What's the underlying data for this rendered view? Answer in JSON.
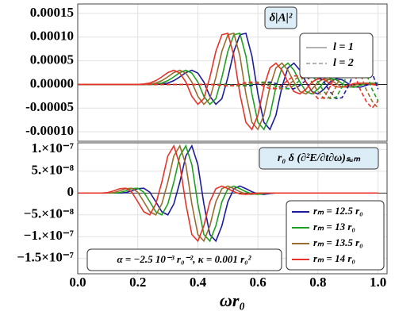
{
  "chart_data": [
    {
      "type": "line",
      "label": "δ|A|²",
      "line_styles": [
        {
          "name": "l = 1",
          "dash": "solid"
        },
        {
          "name": "l = 2",
          "dash": "dashed"
        }
      ],
      "xlim": [
        0,
        1.03
      ],
      "ylim": [
        -0.00012,
        0.00017
      ],
      "yticks": [
        0.00015,
        {
          "value": 0.0001,
          "label": "0.00010"
        },
        5e-05,
        {
          "value": 0,
          "label": "0.00000"
        },
        -5e-05,
        {
          "value": -0.0001,
          "label": "-0.00010"
        }
      ],
      "grid": true,
      "x": [
        0,
        0.02,
        0.04,
        0.06,
        0.08,
        0.1,
        0.12,
        0.14,
        0.16,
        0.18,
        0.2,
        0.22,
        0.24,
        0.26,
        0.28,
        0.3,
        0.32,
        0.34,
        0.36,
        0.38,
        0.4,
        0.42,
        0.44,
        0.46,
        0.48,
        0.5,
        0.52,
        0.54,
        0.56,
        0.58,
        0.6,
        0.62,
        0.64,
        0.66,
        0.68,
        0.7,
        0.72,
        0.74,
        0.76,
        0.78,
        0.8,
        0.82,
        0.84,
        0.86,
        0.88,
        0.9,
        0.92,
        0.94,
        0.96,
        0.98,
        1.0
      ],
      "series": [
        {
          "color": "#1c1c9c",
          "dash": "solid",
          "values": [
            0,
            0,
            0,
            0,
            0,
            0,
            0,
            0,
            0,
            0,
            0,
            0,
            0,
            0,
            1e-06,
            3e-06,
            8e-06,
            1.6e-05,
            2.5e-05,
            3e-05,
            2.4e-05,
            5e-06,
            -2.5e-05,
            -4.2e-05,
            -3e-05,
            1.5e-05,
            7e-05,
            0.000105,
            0.000108,
            6e-05,
            -2e-05,
            -8e-05,
            -9.5e-05,
            -6.5e-05,
            -5e-06,
            3.5e-05,
            4.5e-05,
            3e-05,
            5e-06,
            -1.5e-05,
            -2e-05,
            -1e-05,
            5e-06,
            1.2e-05,
            1e-05,
            2e-06,
            -5e-06,
            -6e-06,
            -2e-06,
            2e-06,
            3e-06
          ]
        },
        {
          "color": "#20a020",
          "dash": "solid",
          "values": [
            0,
            0,
            0,
            0,
            0,
            0,
            0,
            0,
            0,
            0,
            0,
            0,
            0,
            1e-06,
            3e-06,
            8e-06,
            1.6e-05,
            2.5e-05,
            3e-05,
            2.4e-05,
            5e-06,
            -2.5e-05,
            -4.2e-05,
            -3e-05,
            1.5e-05,
            7e-05,
            0.000105,
            0.000108,
            6e-05,
            -2e-05,
            -8e-05,
            -9.5e-05,
            -6.5e-05,
            -5e-06,
            3.5e-05,
            4.5e-05,
            3e-05,
            5e-06,
            -1.5e-05,
            -2e-05,
            -1e-05,
            5e-06,
            1.2e-05,
            1e-05,
            2e-06,
            -5e-06,
            -6e-06,
            -2e-06,
            2e-06,
            3e-06,
            2e-06
          ]
        },
        {
          "color": "#9c6b2e",
          "dash": "solid",
          "values": [
            0,
            0,
            0,
            0,
            0,
            0,
            0,
            0,
            0,
            0,
            0,
            0,
            1e-06,
            3e-06,
            8e-06,
            1.6e-05,
            2.5e-05,
            3e-05,
            2.4e-05,
            5e-06,
            -2.5e-05,
            -4.2e-05,
            -3e-05,
            1.5e-05,
            7e-05,
            0.000105,
            0.000108,
            6e-05,
            -2e-05,
            -8e-05,
            -9.5e-05,
            -6.5e-05,
            -5e-06,
            3.5e-05,
            4.5e-05,
            3e-05,
            5e-06,
            -1.5e-05,
            -2e-05,
            -1e-05,
            5e-06,
            1.2e-05,
            1e-05,
            2e-06,
            -5e-06,
            -6e-06,
            -2e-06,
            2e-06,
            3e-06,
            2e-06,
            0
          ]
        },
        {
          "color": "#e8322a",
          "dash": "solid",
          "values": [
            0,
            0,
            0,
            0,
            0,
            0,
            0,
            0,
            0,
            0,
            0,
            1e-06,
            3e-06,
            8e-06,
            1.6e-05,
            2.5e-05,
            3e-05,
            2.4e-05,
            5e-06,
            -2.5e-05,
            -4.2e-05,
            -3e-05,
            1.5e-05,
            7e-05,
            0.000105,
            0.000108,
            6e-05,
            -2e-05,
            -8e-05,
            -9.5e-05,
            -6.5e-05,
            -5e-06,
            3.5e-05,
            4.5e-05,
            3e-05,
            5e-06,
            -1.5e-05,
            -2e-05,
            -1e-05,
            5e-06,
            1.2e-05,
            1e-05,
            2e-06,
            -5e-06,
            -6e-06,
            -2e-06,
            2e-06,
            3e-06,
            2e-06,
            0,
            -2e-06
          ]
        },
        {
          "color": "#1c1c9c",
          "dash": "dashed",
          "values": [
            0,
            0,
            0,
            0,
            0,
            0,
            0,
            0,
            0,
            0,
            0,
            0,
            0,
            0,
            0,
            0,
            0,
            0,
            0,
            0,
            0,
            0,
            0,
            0,
            0,
            0,
            -1e-06,
            -2e-06,
            -3e-06,
            -2e-06,
            1e-06,
            4e-06,
            5e-06,
            2e-06,
            -4e-06,
            -9e-06,
            -9e-06,
            -2e-06,
            9e-06,
            1.8e-05,
            1.8e-05,
            5e-06,
            -1.5e-05,
            -3e-05,
            -2.8e-05,
            -5e-06,
            2.5e-05,
            4.5e-05,
            4.8e-05,
            2.5e-05,
            -1e-05
          ]
        },
        {
          "color": "#20a020",
          "dash": "dashed",
          "values": [
            0,
            0,
            0,
            0,
            0,
            0,
            0,
            0,
            0,
            0,
            0,
            0,
            0,
            0,
            0,
            0,
            0,
            0,
            0,
            0,
            0,
            0,
            0,
            0,
            0,
            -1e-06,
            -2e-06,
            -3e-06,
            -2e-06,
            1e-06,
            4e-06,
            5e-06,
            2e-06,
            -4e-06,
            -9e-06,
            -9e-06,
            -2e-06,
            9e-06,
            1.8e-05,
            1.8e-05,
            5e-06,
            -1.5e-05,
            -3e-05,
            -2.8e-05,
            -5e-06,
            2.5e-05,
            4.5e-05,
            4.8e-05,
            2.5e-05,
            -1e-05,
            -3.5e-05
          ]
        },
        {
          "color": "#9c6b2e",
          "dash": "dashed",
          "values": [
            0,
            0,
            0,
            0,
            0,
            0,
            0,
            0,
            0,
            0,
            0,
            0,
            0,
            0,
            0,
            0,
            0,
            0,
            0,
            0,
            0,
            0,
            0,
            0,
            -1e-06,
            -2e-06,
            -3e-06,
            -2e-06,
            1e-06,
            4e-06,
            5e-06,
            2e-06,
            -4e-06,
            -9e-06,
            -9e-06,
            -2e-06,
            9e-06,
            1.8e-05,
            1.8e-05,
            5e-06,
            -1.5e-05,
            -3e-05,
            -2.8e-05,
            -5e-06,
            2.5e-05,
            4.5e-05,
            4.8e-05,
            2.5e-05,
            -1e-05,
            -3.5e-05,
            -5e-05
          ]
        },
        {
          "color": "#e8322a",
          "dash": "dashed",
          "values": [
            0,
            0,
            0,
            0,
            0,
            0,
            0,
            0,
            0,
            0,
            0,
            0,
            0,
            0,
            0,
            0,
            0,
            0,
            0,
            0,
            0,
            0,
            0,
            -1e-06,
            -2e-06,
            -3e-06,
            -2e-06,
            1e-06,
            4e-06,
            5e-06,
            2e-06,
            -4e-06,
            -9e-06,
            -9e-06,
            -2e-06,
            9e-06,
            1.8e-05,
            1.8e-05,
            5e-06,
            -1.5e-05,
            -3e-05,
            -2.8e-05,
            -5e-06,
            2.5e-05,
            4.5e-05,
            4.8e-05,
            2.5e-05,
            -1e-05,
            -3.5e-05,
            -5e-05,
            -3.5e-05
          ]
        }
      ]
    },
    {
      "type": "line",
      "label": "r₀ δ (∂²E/∂t∂ω)ₛᵤₘ",
      "annotation": "α = −2.5 10⁻³ r₀⁻²,  κ = 0.001 r₀²",
      "xlabel": "ωr₀",
      "xlim": [
        0,
        1.03
      ],
      "xticks": [
        {
          "value": 0,
          "label": "0.0"
        },
        0.2,
        0.4,
        0.6,
        0.8,
        {
          "value": 1,
          "label": "1.0"
        }
      ],
      "ylim": [
        -1.85e-07,
        1.15e-07
      ],
      "yticks": [
        {
          "value": 1e-07,
          "label": "1.×10⁻⁷"
        },
        {
          "value": 5e-08,
          "label": "5.×10⁻⁸"
        },
        0,
        {
          "value": -5e-08,
          "label": "−5.×10⁻⁸"
        },
        {
          "value": -1e-07,
          "label": "−1.×10⁻⁷"
        },
        {
          "value": -1.5e-07,
          "label": "−1.5×10⁻⁷"
        }
      ],
      "grid": true,
      "x": [
        0,
        0.02,
        0.04,
        0.06,
        0.08,
        0.1,
        0.12,
        0.14,
        0.16,
        0.18,
        0.2,
        0.22,
        0.24,
        0.26,
        0.28,
        0.3,
        0.32,
        0.34,
        0.36,
        0.38,
        0.4,
        0.42,
        0.44,
        0.46,
        0.48,
        0.5,
        0.52,
        0.54,
        0.56,
        0.58,
        0.6,
        0.62,
        0.64,
        0.66,
        0.68,
        0.7,
        0.72,
        0.74,
        0.76,
        0.78,
        0.8,
        0.82,
        0.84,
        0.86,
        0.88,
        0.9,
        0.92,
        0.94,
        0.96,
        0.98,
        1.0
      ],
      "series": [
        {
          "name": "rₘ = 12.5 r₀",
          "color": "#1c1c9c",
          "values": [
            0,
            0,
            0,
            0,
            0,
            0,
            0,
            0,
            1e-09,
            5e-09,
            1e-08,
            1.1e-08,
            2e-09,
            -2e-08,
            -4.3e-08,
            -5e-08,
            -2.5e-08,
            2.5e-08,
            8.5e-08,
            1.08e-07,
            6.5e-08,
            -2.5e-08,
            -9.5e-08,
            -1.1e-07,
            -7.5e-08,
            -2e-08,
            1e-08,
            1.6e-08,
            1e-08,
            3e-09,
            -2e-09,
            -3e-09,
            -1e-09,
            0,
            0,
            0,
            0,
            0,
            0,
            0,
            0,
            0,
            0,
            0,
            0,
            0,
            0,
            0,
            0,
            0,
            0
          ]
        },
        {
          "name": "rₘ = 13 r₀",
          "color": "#20a020",
          "values": [
            0,
            0,
            0,
            0,
            0,
            0,
            0,
            1e-09,
            5e-09,
            1e-08,
            1.1e-08,
            2e-09,
            -2e-08,
            -4.3e-08,
            -5e-08,
            -2.5e-08,
            2.5e-08,
            8.5e-08,
            1.08e-07,
            6.5e-08,
            -2.5e-08,
            -9.5e-08,
            -1.1e-07,
            -7.5e-08,
            -2e-08,
            1e-08,
            1.6e-08,
            1e-08,
            3e-09,
            -2e-09,
            -3e-09,
            -1e-09,
            0,
            0,
            0,
            0,
            0,
            0,
            0,
            0,
            0,
            0,
            0,
            0,
            0,
            0,
            0,
            0,
            0,
            0,
            0
          ]
        },
        {
          "name": "rₘ = 13.5 r₀",
          "color": "#9c6b2e",
          "values": [
            0,
            0,
            0,
            0,
            0,
            0,
            1e-09,
            5e-09,
            1e-08,
            1.1e-08,
            2e-09,
            -2e-08,
            -4.3e-08,
            -5e-08,
            -2.5e-08,
            2.5e-08,
            8.5e-08,
            1.08e-07,
            6.5e-08,
            -2.5e-08,
            -9.5e-08,
            -1.1e-07,
            -7.5e-08,
            -2e-08,
            1e-08,
            1.6e-08,
            1e-08,
            3e-09,
            -2e-09,
            -3e-09,
            -1e-09,
            0,
            0,
            0,
            0,
            0,
            0,
            0,
            0,
            0,
            0,
            0,
            0,
            0,
            0,
            0,
            0,
            0,
            0,
            0,
            0
          ]
        },
        {
          "name": "rₘ = 14 r₀",
          "color": "#e8322a",
          "values": [
            0,
            0,
            0,
            0,
            0,
            1e-09,
            5e-09,
            1e-08,
            1.1e-08,
            2e-09,
            -2e-08,
            -4.3e-08,
            -5e-08,
            -2.5e-08,
            2.5e-08,
            8.5e-08,
            1.08e-07,
            6.5e-08,
            -2.5e-08,
            -9.5e-08,
            -1.1e-07,
            -7.5e-08,
            -2e-08,
            1e-08,
            1.6e-08,
            1e-08,
            3e-09,
            -2e-09,
            -3e-09,
            -1e-09,
            0,
            0,
            0,
            0,
            0,
            0,
            0,
            0,
            0,
            0,
            0,
            0,
            0,
            0,
            0,
            0,
            0,
            0,
            0,
            0,
            0
          ]
        }
      ]
    }
  ]
}
